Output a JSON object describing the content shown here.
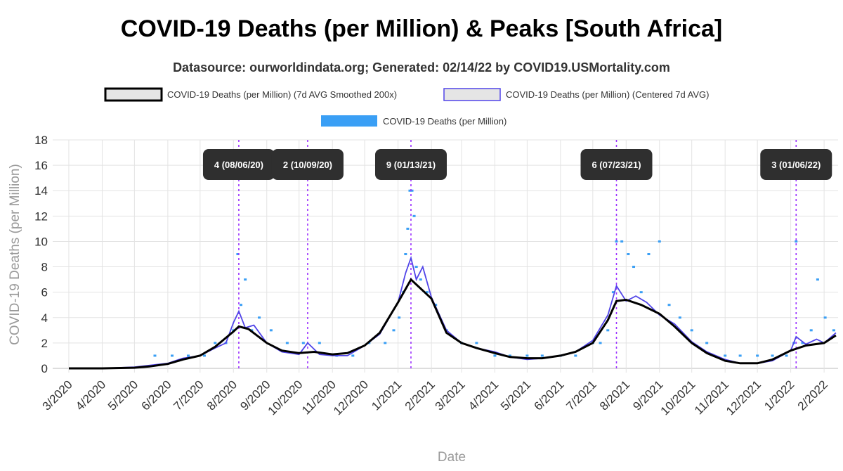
{
  "chart_data": {
    "type": "line",
    "title": "COVID-19 Deaths (per Million) & Peaks [South Africa]",
    "subtitle": "Datasource: ourworldindata.org; Generated: 02/14/22 by COVID19.USMortality.com",
    "xlabel": "Date",
    "ylabel": "COVID-19 Deaths (per Million)",
    "ylim": [
      0,
      18
    ],
    "yticks": [
      0,
      2,
      4,
      6,
      8,
      10,
      12,
      14,
      16,
      18
    ],
    "xlim": [
      "2020-02-15",
      "2022-02-14"
    ],
    "xticks": [
      "3/2020",
      "4/2020",
      "5/2020",
      "6/2020",
      "7/2020",
      "8/2020",
      "9/2020",
      "10/2020",
      "11/2020",
      "12/2020",
      "1/2021",
      "2/2021",
      "3/2021",
      "4/2021",
      "5/2021",
      "6/2021",
      "7/2021",
      "8/2021",
      "9/2021",
      "10/2021",
      "11/2021",
      "12/2021",
      "1/2022",
      "2/2022"
    ],
    "grid": true,
    "legend_position": "top",
    "legend": [
      "COVID-19 Deaths (per Million) (7d AVG Smoothed 200x)",
      "COVID-19 Deaths (per Million) (Centered 7d AVG)",
      "COVID-19 Deaths (per Million)"
    ],
    "colors": {
      "smoothed": "#000000",
      "centered": "#5044e8",
      "daily": "#3a9ff5",
      "peak_line": "#9b30ff",
      "peak_box": "#2f2f2f"
    },
    "series": [
      {
        "name": "COVID-19 Deaths (per Million) (7d AVG Smoothed 200x)",
        "x": [
          "2020-03-01",
          "2020-04-01",
          "2020-05-01",
          "2020-05-15",
          "2020-06-01",
          "2020-06-15",
          "2020-07-01",
          "2020-07-15",
          "2020-08-01",
          "2020-08-06",
          "2020-08-15",
          "2020-09-01",
          "2020-09-15",
          "2020-10-01",
          "2020-10-15",
          "2020-11-01",
          "2020-11-15",
          "2020-12-01",
          "2020-12-15",
          "2021-01-01",
          "2021-01-13",
          "2021-02-01",
          "2021-02-15",
          "2021-03-01",
          "2021-03-15",
          "2021-04-01",
          "2021-04-15",
          "2021-05-01",
          "2021-05-15",
          "2021-06-01",
          "2021-06-15",
          "2021-07-01",
          "2021-07-15",
          "2021-07-23",
          "2021-08-01",
          "2021-08-15",
          "2021-09-01",
          "2021-09-15",
          "2021-10-01",
          "2021-10-15",
          "2021-11-01",
          "2021-11-15",
          "2021-12-01",
          "2021-12-15",
          "2022-01-01",
          "2022-01-15",
          "2022-02-01",
          "2022-02-12"
        ],
        "values": [
          0,
          0,
          0.05,
          0.15,
          0.35,
          0.7,
          1.0,
          1.7,
          2.9,
          3.3,
          3.1,
          2.0,
          1.4,
          1.2,
          1.3,
          1.1,
          1.2,
          1.8,
          2.8,
          5.2,
          7.0,
          5.5,
          2.8,
          2.0,
          1.6,
          1.2,
          0.9,
          0.8,
          0.8,
          1.0,
          1.3,
          2.0,
          3.8,
          5.3,
          5.4,
          5.0,
          4.3,
          3.3,
          2.0,
          1.2,
          0.6,
          0.4,
          0.4,
          0.7,
          1.4,
          1.8,
          2.0,
          2.6
        ]
      },
      {
        "name": "COVID-19 Deaths (per Million) (Centered 7d AVG)",
        "x": [
          "2020-03-01",
          "2020-04-01",
          "2020-05-01",
          "2020-06-01",
          "2020-06-15",
          "2020-07-01",
          "2020-07-15",
          "2020-07-25",
          "2020-08-01",
          "2020-08-06",
          "2020-08-12",
          "2020-08-20",
          "2020-09-01",
          "2020-09-15",
          "2020-10-01",
          "2020-10-09",
          "2020-10-20",
          "2020-11-01",
          "2020-11-15",
          "2020-12-01",
          "2020-12-15",
          "2021-01-01",
          "2021-01-08",
          "2021-01-13",
          "2021-01-18",
          "2021-01-24",
          "2021-02-01",
          "2021-02-15",
          "2021-03-01",
          "2021-03-15",
          "2021-04-01",
          "2021-04-15",
          "2021-05-01",
          "2021-05-15",
          "2021-06-01",
          "2021-06-15",
          "2021-07-01",
          "2021-07-15",
          "2021-07-23",
          "2021-08-01",
          "2021-08-10",
          "2021-08-20",
          "2021-09-01",
          "2021-09-15",
          "2021-10-01",
          "2021-10-15",
          "2021-11-01",
          "2021-11-15",
          "2021-12-01",
          "2021-12-15",
          "2022-01-01",
          "2022-01-06",
          "2022-01-15",
          "2022-01-25",
          "2022-02-01",
          "2022-02-12"
        ],
        "values": [
          0,
          0,
          0.1,
          0.4,
          0.8,
          1.0,
          1.6,
          2.0,
          3.6,
          4.5,
          3.2,
          3.4,
          2.0,
          1.3,
          1.1,
          2.0,
          1.1,
          1.0,
          1.0,
          1.8,
          2.7,
          5.2,
          7.5,
          8.7,
          7.0,
          8.0,
          5.6,
          3.0,
          2.0,
          1.6,
          1.3,
          0.9,
          0.7,
          0.8,
          1.0,
          1.3,
          2.2,
          4.2,
          6.5,
          5.3,
          5.7,
          5.2,
          4.2,
          3.5,
          2.1,
          1.3,
          0.7,
          0.4,
          0.4,
          0.6,
          1.4,
          2.5,
          1.9,
          2.3,
          2.0,
          2.8
        ]
      },
      {
        "name": "COVID-19 Deaths (per Million)",
        "type": "scatter",
        "x": [
          "2020-05-20",
          "2020-06-05",
          "2020-06-20",
          "2020-07-05",
          "2020-07-15",
          "2020-07-25",
          "2020-08-01",
          "2020-08-05",
          "2020-08-08",
          "2020-08-12",
          "2020-08-18",
          "2020-08-25",
          "2020-09-05",
          "2020-09-20",
          "2020-10-05",
          "2020-10-20",
          "2020-11-05",
          "2020-11-20",
          "2020-12-05",
          "2020-12-20",
          "2020-12-28",
          "2021-01-02",
          "2021-01-06",
          "2021-01-08",
          "2021-01-10",
          "2021-01-12",
          "2021-01-14",
          "2021-01-16",
          "2021-01-18",
          "2021-01-22",
          "2021-01-28",
          "2021-02-05",
          "2021-02-15",
          "2021-03-01",
          "2021-03-15",
          "2021-04-01",
          "2021-04-15",
          "2021-05-01",
          "2021-05-15",
          "2021-06-01",
          "2021-06-15",
          "2021-07-01",
          "2021-07-08",
          "2021-07-15",
          "2021-07-20",
          "2021-07-23",
          "2021-07-28",
          "2021-08-03",
          "2021-08-08",
          "2021-08-15",
          "2021-08-22",
          "2021-09-01",
          "2021-09-10",
          "2021-09-20",
          "2021-10-01",
          "2021-10-15",
          "2021-11-01",
          "2021-11-15",
          "2021-12-01",
          "2021-12-15",
          "2021-12-28",
          "2022-01-04",
          "2022-01-06",
          "2022-01-12",
          "2022-01-20",
          "2022-01-26",
          "2022-02-02",
          "2022-02-10"
        ],
        "values": [
          1,
          1,
          1,
          1,
          2,
          2,
          3,
          9,
          5,
          7,
          3,
          4,
          3,
          2,
          2,
          2,
          1,
          1,
          2,
          2,
          3,
          4,
          6,
          9,
          11,
          14,
          14,
          12,
          8,
          7,
          6,
          5,
          3,
          2,
          2,
          1,
          1,
          1,
          1,
          1,
          1,
          2,
          2,
          3,
          6,
          10,
          10,
          9,
          8,
          6,
          9,
          10,
          5,
          4,
          3,
          2,
          1,
          1,
          1,
          1,
          1,
          2,
          10,
          2,
          3,
          7,
          4,
          3
        ]
      }
    ],
    "peaks": [
      {
        "date": "2020-08-06",
        "value": 4,
        "label": "4 (08/06/20)"
      },
      {
        "date": "2020-10-09",
        "value": 2,
        "label": "2 (10/09/20)"
      },
      {
        "date": "2021-01-13",
        "value": 9,
        "label": "9 (01/13/21)"
      },
      {
        "date": "2021-07-23",
        "value": 6,
        "label": "6 (07/23/21)"
      },
      {
        "date": "2022-01-06",
        "value": 3,
        "label": "3 (01/06/22)"
      }
    ]
  }
}
